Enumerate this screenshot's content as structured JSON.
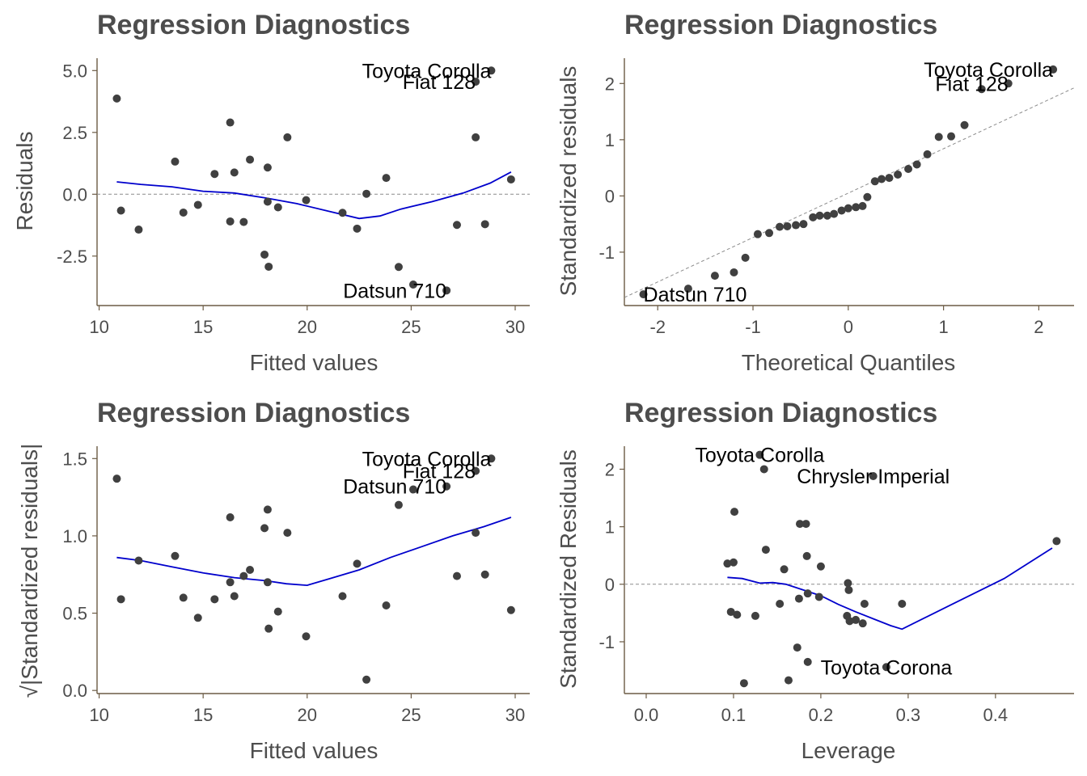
{
  "colors": {
    "point": "#404040",
    "smooth": "#0000cc",
    "reference": "#8c8c8c",
    "axis": "#6b5b45",
    "text": "#4d4d4d"
  },
  "chart_data": [
    {
      "id": "resid",
      "type": "scatter",
      "title": "Regression Diagnostics",
      "xlabel": "Fitted values",
      "ylabel": "Residuals",
      "xlim": [
        9.9,
        30.7
      ],
      "ylim": [
        -4.5,
        5.5
      ],
      "xticks": [
        10,
        15,
        20,
        25,
        30
      ],
      "xtick_labels": [
        "10",
        "15",
        "20",
        "25",
        "30"
      ],
      "yticks": [
        -2.5,
        0,
        2.5,
        5
      ],
      "ytick_labels": [
        "-2.5",
        "0.0",
        "2.5",
        "5.0"
      ],
      "refline": {
        "type": "hline",
        "y": 0
      },
      "points": [
        [
          10.85,
          3.87
        ],
        [
          11.05,
          -0.66
        ],
        [
          11.9,
          -1.43
        ],
        [
          13.65,
          1.32
        ],
        [
          14.05,
          -0.74
        ],
        [
          14.75,
          -0.43
        ],
        [
          15.55,
          0.82
        ],
        [
          16.3,
          2.9
        ],
        [
          16.3,
          -1.1
        ],
        [
          16.5,
          0.88
        ],
        [
          16.95,
          -1.12
        ],
        [
          17.25,
          1.4
        ],
        [
          17.95,
          -2.44
        ],
        [
          18.1,
          1.08
        ],
        [
          18.1,
          -0.3
        ],
        [
          18.15,
          -2.93
        ],
        [
          18.6,
          -0.53
        ],
        [
          19.05,
          2.3
        ],
        [
          19.95,
          -0.24
        ],
        [
          21.7,
          -0.75
        ],
        [
          22.4,
          -1.39
        ],
        [
          22.85,
          0.02
        ],
        [
          23.8,
          0.66
        ],
        [
          24.4,
          -2.94
        ],
        [
          25.1,
          -3.65
        ],
        [
          26.7,
          -3.89
        ],
        [
          27.2,
          -1.24
        ],
        [
          28.1,
          2.3
        ],
        [
          28.1,
          4.55
        ],
        [
          28.55,
          -1.21
        ],
        [
          28.85,
          5.0
        ],
        [
          29.8,
          0.6
        ]
      ],
      "smooth": [
        [
          10.85,
          0.5
        ],
        [
          12,
          0.4
        ],
        [
          13.5,
          0.3
        ],
        [
          15,
          0.12
        ],
        [
          16.5,
          0.05
        ],
        [
          18,
          -0.15
        ],
        [
          19.5,
          -0.38
        ],
        [
          21,
          -0.68
        ],
        [
          22.5,
          -0.98
        ],
        [
          23.5,
          -0.88
        ],
        [
          24.5,
          -0.6
        ],
        [
          26,
          -0.3
        ],
        [
          27.5,
          0.05
        ],
        [
          28.8,
          0.45
        ],
        [
          29.8,
          0.9
        ]
      ],
      "labels": [
        {
          "text": "Toyota Corolla",
          "x": 28.85,
          "y": 5.0,
          "anchor": "end"
        },
        {
          "text": "Fiat 128",
          "x": 28.1,
          "y": 4.55,
          "anchor": "end"
        },
        {
          "text": "Datsun 710",
          "x": 26.7,
          "y": -3.89,
          "anchor": "end"
        }
      ]
    },
    {
      "id": "qq",
      "type": "scatter",
      "title": "Regression Diagnostics",
      "xlabel": "Theoretical Quantiles",
      "ylabel": "Standardized residuals",
      "xlim": [
        -2.35,
        2.37
      ],
      "ylim": [
        -1.95,
        2.45
      ],
      "xticks": [
        -2,
        -1,
        0,
        1,
        2
      ],
      "xtick_labels": [
        "-2",
        "-1",
        "0",
        "1",
        "2"
      ],
      "yticks": [
        -1,
        0,
        1,
        2
      ],
      "ytick_labels": [
        "-1",
        "0",
        "1",
        "2"
      ],
      "refline": {
        "type": "line",
        "intercept": 0.05,
        "slope": 0.79
      },
      "points": [
        [
          -2.15,
          -1.75
        ],
        [
          -1.68,
          -1.65
        ],
        [
          -1.4,
          -1.42
        ],
        [
          -1.2,
          -1.36
        ],
        [
          -1.08,
          -1.1
        ],
        [
          -0.95,
          -0.68
        ],
        [
          -0.83,
          -0.66
        ],
        [
          -0.72,
          -0.55
        ],
        [
          -0.64,
          -0.54
        ],
        [
          -0.55,
          -0.52
        ],
        [
          -0.47,
          -0.5
        ],
        [
          -0.37,
          -0.38
        ],
        [
          -0.3,
          -0.35
        ],
        [
          -0.22,
          -0.35
        ],
        [
          -0.15,
          -0.32
        ],
        [
          -0.07,
          -0.26
        ],
        [
          0.0,
          -0.22
        ],
        [
          0.08,
          -0.2
        ],
        [
          0.15,
          -0.18
        ],
        [
          0.2,
          -0.02
        ],
        [
          0.28,
          0.26
        ],
        [
          0.35,
          0.3
        ],
        [
          0.43,
          0.32
        ],
        [
          0.52,
          0.38
        ],
        [
          0.63,
          0.48
        ],
        [
          0.72,
          0.56
        ],
        [
          0.83,
          0.74
        ],
        [
          0.95,
          1.05
        ],
        [
          1.08,
          1.06
        ],
        [
          1.22,
          1.26
        ],
        [
          1.4,
          1.9
        ],
        [
          1.68,
          2.0
        ],
        [
          2.15,
          2.25
        ]
      ],
      "labels": [
        {
          "text": "Toyota Corolla",
          "x": 2.15,
          "y": 2.25,
          "anchor": "end"
        },
        {
          "text": "Fiat 128",
          "x": 1.68,
          "y": 2.0,
          "anchor": "end"
        },
        {
          "text": "Datsun 710",
          "x": -2.15,
          "y": -1.75,
          "anchor": "start"
        }
      ]
    },
    {
      "id": "scale",
      "type": "scatter",
      "title": "Regression Diagnostics",
      "xlabel": "Fitted values",
      "ylabel": "√|Standardized residuals|",
      "xlim": [
        9.9,
        30.7
      ],
      "ylim": [
        -0.02,
        1.58
      ],
      "xticks": [
        10,
        15,
        20,
        25,
        30
      ],
      "xtick_labels": [
        "10",
        "15",
        "20",
        "25",
        "30"
      ],
      "yticks": [
        0,
        0.5,
        1,
        1.5
      ],
      "ytick_labels": [
        "0.0",
        "0.5",
        "1.0",
        "1.5"
      ],
      "points": [
        [
          10.85,
          1.37
        ],
        [
          11.05,
          0.59
        ],
        [
          11.9,
          0.84
        ],
        [
          13.65,
          0.87
        ],
        [
          14.05,
          0.6
        ],
        [
          14.75,
          0.47
        ],
        [
          15.55,
          0.59
        ],
        [
          16.3,
          1.12
        ],
        [
          16.3,
          0.7
        ],
        [
          16.5,
          0.61
        ],
        [
          16.95,
          0.74
        ],
        [
          17.25,
          0.78
        ],
        [
          17.95,
          1.05
        ],
        [
          18.1,
          1.17
        ],
        [
          18.1,
          0.7
        ],
        [
          18.15,
          0.4
        ],
        [
          18.6,
          0.51
        ],
        [
          19.05,
          1.02
        ],
        [
          19.95,
          0.35
        ],
        [
          21.7,
          0.61
        ],
        [
          22.4,
          0.82
        ],
        [
          22.85,
          0.07
        ],
        [
          23.8,
          0.55
        ],
        [
          24.4,
          1.2
        ],
        [
          25.1,
          1.3
        ],
        [
          26.7,
          1.32
        ],
        [
          27.2,
          0.74
        ],
        [
          28.1,
          1.42
        ],
        [
          28.1,
          1.02
        ],
        [
          28.55,
          0.75
        ],
        [
          28.85,
          1.5
        ],
        [
          29.8,
          0.52
        ]
      ],
      "smooth": [
        [
          10.85,
          0.86
        ],
        [
          12,
          0.84
        ],
        [
          13.5,
          0.8
        ],
        [
          15,
          0.76
        ],
        [
          16.5,
          0.73
        ],
        [
          18,
          0.71
        ],
        [
          19,
          0.69
        ],
        [
          20,
          0.68
        ],
        [
          21,
          0.72
        ],
        [
          22.5,
          0.78
        ],
        [
          24,
          0.86
        ],
        [
          25.5,
          0.93
        ],
        [
          27,
          1.0
        ],
        [
          28.5,
          1.06
        ],
        [
          29.8,
          1.12
        ]
      ],
      "labels": [
        {
          "text": "Toyota Corolla",
          "x": 28.85,
          "y": 1.5,
          "anchor": "end"
        },
        {
          "text": "Fiat 128",
          "x": 28.1,
          "y": 1.42,
          "anchor": "end"
        },
        {
          "text": "Datsun 710",
          "x": 26.7,
          "y": 1.32,
          "anchor": "end"
        }
      ]
    },
    {
      "id": "lev",
      "type": "scatter",
      "title": "Regression Diagnostics",
      "xlabel": "Leverage",
      "ylabel": "Standardized Residuals",
      "xlim": [
        -0.025,
        0.49
      ],
      "ylim": [
        -1.9,
        2.4
      ],
      "xticks": [
        0,
        0.1,
        0.2,
        0.3,
        0.4
      ],
      "xtick_labels": [
        "0.0",
        "0.1",
        "0.2",
        "0.3",
        "0.4"
      ],
      "yticks": [
        -1,
        0,
        1,
        2
      ],
      "ytick_labels": [
        "-1",
        "0",
        "1",
        "2"
      ],
      "refline": {
        "type": "hline",
        "y": 0
      },
      "points": [
        [
          0.093,
          0.36
        ],
        [
          0.097,
          -0.48
        ],
        [
          0.1,
          0.38
        ],
        [
          0.101,
          1.26
        ],
        [
          0.104,
          -0.53
        ],
        [
          0.112,
          -1.72
        ],
        [
          0.125,
          -0.55
        ],
        [
          0.13,
          2.25
        ],
        [
          0.135,
          2.0
        ],
        [
          0.137,
          0.6
        ],
        [
          0.153,
          -0.34
        ],
        [
          0.158,
          0.26
        ],
        [
          0.163,
          -1.67
        ],
        [
          0.173,
          -1.1
        ],
        [
          0.175,
          -0.25
        ],
        [
          0.176,
          1.05
        ],
        [
          0.183,
          1.05
        ],
        [
          0.184,
          0.49
        ],
        [
          0.185,
          -1.35
        ],
        [
          0.185,
          -0.16
        ],
        [
          0.198,
          -0.22
        ],
        [
          0.2,
          0.31
        ],
        [
          0.23,
          -0.55
        ],
        [
          0.231,
          0.02
        ],
        [
          0.232,
          -0.1
        ],
        [
          0.233,
          -0.64
        ],
        [
          0.24,
          -0.62
        ],
        [
          0.248,
          -0.68
        ],
        [
          0.25,
          -0.34
        ],
        [
          0.26,
          1.88
        ],
        [
          0.275,
          -1.44
        ],
        [
          0.293,
          -0.34
        ],
        [
          0.47,
          0.75
        ]
      ],
      "smooth": [
        [
          0.093,
          0.12
        ],
        [
          0.11,
          0.1
        ],
        [
          0.13,
          0.02
        ],
        [
          0.145,
          0.03
        ],
        [
          0.16,
          0.0
        ],
        [
          0.18,
          -0.1
        ],
        [
          0.2,
          -0.2
        ],
        [
          0.22,
          -0.35
        ],
        [
          0.24,
          -0.48
        ],
        [
          0.26,
          -0.6
        ],
        [
          0.28,
          -0.72
        ],
        [
          0.293,
          -0.78
        ],
        [
          0.35,
          -0.35
        ],
        [
          0.41,
          0.1
        ],
        [
          0.465,
          0.63
        ]
      ],
      "labels": [
        {
          "text": "Toyota Corolla",
          "x": 0.13,
          "y": 2.25,
          "anchor": "middle"
        },
        {
          "text": "Chrysler Imperial",
          "x": 0.26,
          "y": 1.88,
          "anchor": "middle"
        },
        {
          "text": "Toyota Corona",
          "x": 0.275,
          "y": -1.44,
          "anchor": "middle"
        }
      ]
    }
  ]
}
